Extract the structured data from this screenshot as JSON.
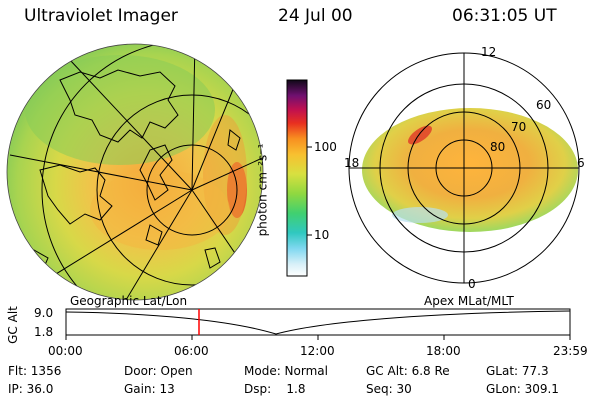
{
  "header": {
    "title": "Ultraviolet Imager",
    "date": "24 Jul 00",
    "time": "06:31:05 UT"
  },
  "colorbar": {
    "unit_label": "photon cm⁻²s⁻¹",
    "ticks": [
      "100",
      "10"
    ]
  },
  "left_panel": {
    "caption": "Geographic Lat/Lon"
  },
  "right_panel": {
    "caption": "Apex MLat/MLT",
    "mlt_labels": [
      "12",
      "18",
      "6",
      "0"
    ],
    "mlat_labels": [
      "60",
      "70",
      "80"
    ]
  },
  "altitude_plot": {
    "ylabel": "GC Alt",
    "yticks": [
      "9.0",
      "1.8"
    ],
    "xticks": [
      "00:00",
      "06:00",
      "12:00",
      "18:00",
      "23:59"
    ],
    "current_time_marker": "06:31",
    "marker_color": "#ff0000"
  },
  "info": {
    "row1": [
      "Flt: 1356",
      "Door: Open",
      "Mode: Normal",
      "GC Alt: 6.8 Re",
      "GLat: 77.3"
    ],
    "row2": [
      "IP: 36.0",
      "Gain: 13",
      "Dsp:    1.8",
      "Seq: 30",
      "GLon: 309.1"
    ]
  }
}
